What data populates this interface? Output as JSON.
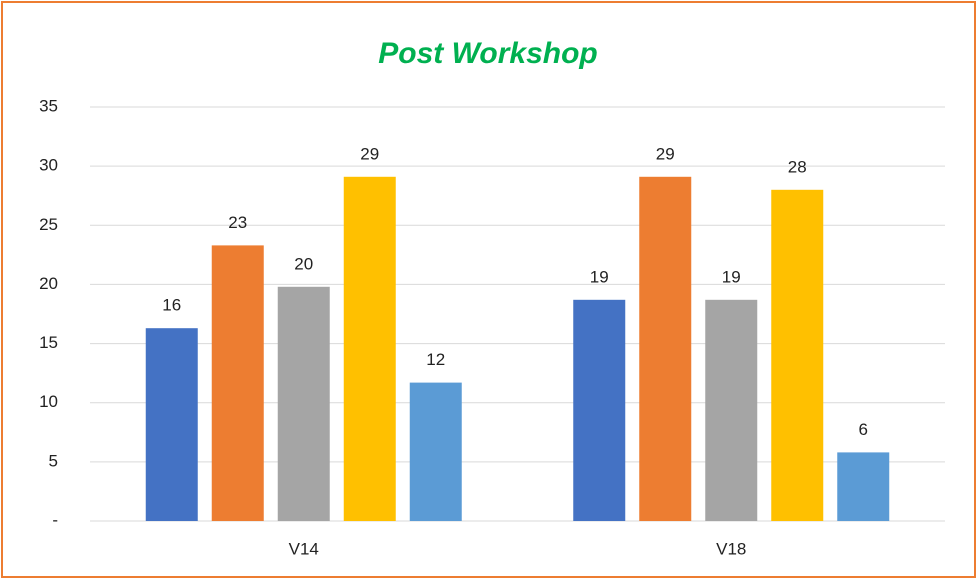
{
  "chart_data": {
    "type": "bar",
    "title": "Post Workshop",
    "categories": [
      "V14",
      "V18"
    ],
    "series": [
      {
        "color": "#4472c4",
        "values": [
          16.3,
          18.7
        ],
        "value_labels": [
          "16",
          "19"
        ]
      },
      {
        "color": "#ed7d31",
        "values": [
          23.3,
          29.1
        ],
        "value_labels": [
          "23",
          "29"
        ]
      },
      {
        "color": "#a5a5a5",
        "values": [
          19.8,
          18.7
        ],
        "value_labels": [
          "20",
          "19"
        ]
      },
      {
        "color": "#ffc000",
        "values": [
          29.1,
          28.0
        ],
        "value_labels": [
          "29",
          "28"
        ]
      },
      {
        "color": "#5b9bd5",
        "values": [
          11.7,
          5.8
        ],
        "value_labels": [
          "12",
          "6"
        ]
      }
    ],
    "ylim": [
      0,
      35
    ],
    "yticks": [
      {
        "value": 0,
        "label": "-"
      },
      5,
      10,
      15,
      20,
      25,
      30,
      35
    ],
    "grid": true
  }
}
